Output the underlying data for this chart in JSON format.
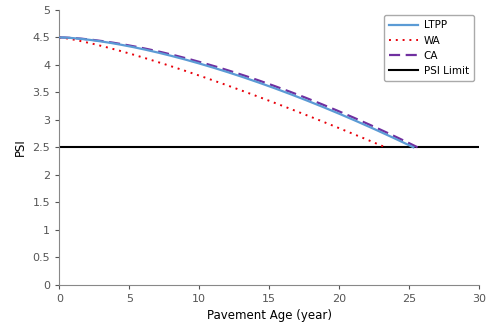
{
  "title": "",
  "xlabel": "Pavement Age (year)",
  "ylabel": "PSI",
  "xlim": [
    0,
    30
  ],
  "ylim": [
    0,
    5
  ],
  "xticks": [
    0,
    5,
    10,
    15,
    20,
    25,
    30
  ],
  "yticks": [
    0,
    0.5,
    1.0,
    1.5,
    2.0,
    2.5,
    3.0,
    3.5,
    4.0,
    4.5,
    5.0
  ],
  "ytick_labels": [
    "0",
    "0.5",
    "1",
    "1.5",
    "2",
    "2.5",
    "3",
    "3.5",
    "4",
    "4.5",
    "5"
  ],
  "psi_limit": 2.5,
  "ltpp_color": "#5B9BD5",
  "wa_color": "#E8000A",
  "ca_color": "#7030A0",
  "limit_color": "#000000",
  "ltpp_label": "LTPP",
  "wa_label": "WA",
  "ca_label": "CA",
  "limit_label": "PSI Limit",
  "ltpp_end_year": 25.3,
  "wa_end_year": 23.3,
  "ca_end_year": 25.6,
  "ltpp_beta": 1.55,
  "wa_beta": 1.25,
  "ca_beta": 1.6,
  "start_psi": 4.5,
  "end_psi": 2.5,
  "background_color": "#FFFFFF",
  "figsize": [
    4.94,
    3.31
  ],
  "dpi": 100
}
